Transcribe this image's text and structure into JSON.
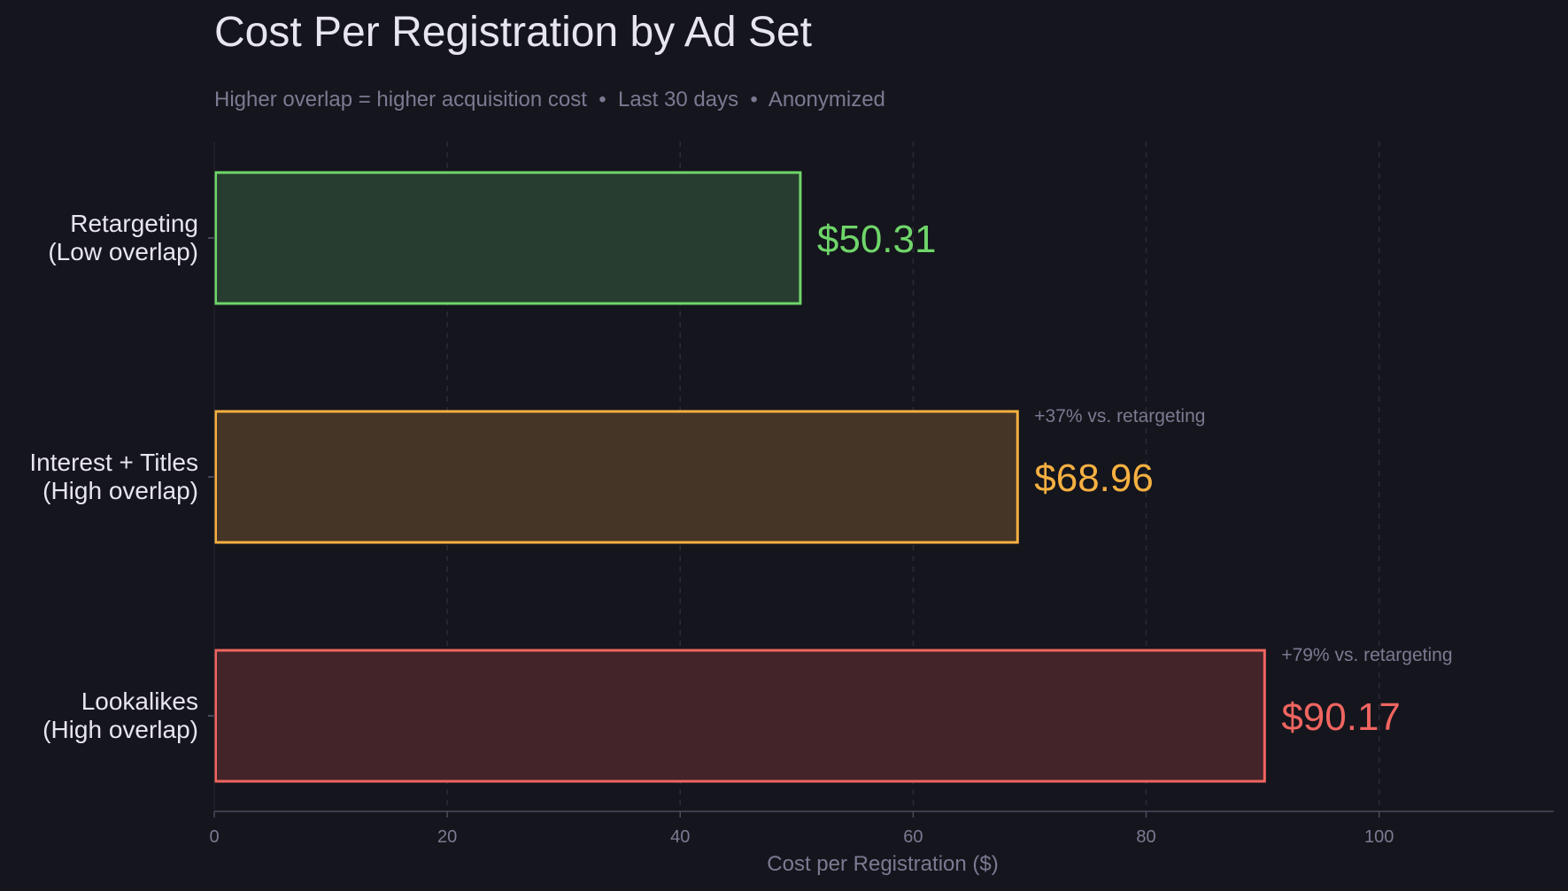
{
  "chart_data": {
    "type": "bar",
    "orientation": "horizontal",
    "title": "Cost Per Registration by Ad Set",
    "subtitle": "Higher overlap = higher acquisition cost  •  Last 30 days  •  Anonymized",
    "xlabel": "Cost per Registration ($)",
    "ylabel": "",
    "xlim": [
      0,
      115
    ],
    "xticks": [
      0,
      20,
      40,
      60,
      80,
      100
    ],
    "grid": "vertical dashed",
    "categories": [
      [
        "Retargeting",
        "(Low overlap)"
      ],
      [
        "Interest + Titles",
        "(High overlap)"
      ],
      [
        "Lookalikes",
        "(High overlap)"
      ]
    ],
    "values": [
      50.31,
      68.96,
      90.17
    ],
    "value_labels": [
      "$50.31",
      "$68.96",
      "$90.17"
    ],
    "annotations": [
      "",
      "+37% vs. retargeting",
      "+79% vs. retargeting"
    ],
    "colors": [
      "#6fd66a",
      "#f5b041",
      "#f06560"
    ],
    "fill_colors": [
      "#273d30",
      "#453526",
      "#432429"
    ]
  }
}
